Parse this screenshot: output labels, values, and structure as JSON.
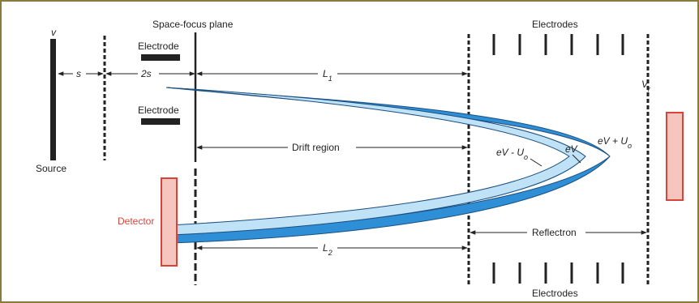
{
  "labels": {
    "v": "v",
    "source": "Source",
    "s": "s",
    "two_s": "2s",
    "space_focus_plane": "Space-focus plane",
    "electrode_top": "Electrode",
    "electrode_bottom": "Electrode",
    "l1": "L",
    "l1_sub": "1",
    "l2": "L",
    "l2_sub": "2",
    "drift_region": "Drift region",
    "detector": "Detector",
    "reflectron": "Reflectron",
    "electrodes_top": "Electrodes",
    "electrodes_bottom": "Electrodes",
    "vr": "V",
    "vr_sub": "r",
    "ev_minus": "eV - U",
    "ev_minus_sub": "o",
    "ev": "eV",
    "ev_plus": "eV + U",
    "ev_plus_sub": "o"
  },
  "colors": {
    "frame": "#8a7a3c",
    "ion_fast": "#2f8fd6",
    "ion_slow": "#bfe2f7",
    "detector_fill": "#f6c6be",
    "detector_stroke": "#d9443a",
    "detector_label": "#d9443a",
    "ink": "#222222"
  }
}
